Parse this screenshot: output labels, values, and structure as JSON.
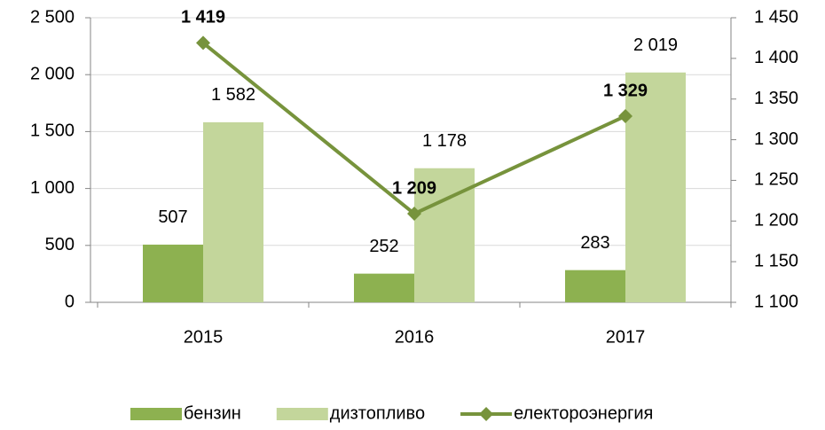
{
  "chart_data": {
    "type": "bar",
    "categories": [
      "2015",
      "2016",
      "2017"
    ],
    "series": [
      {
        "name": "бензин",
        "color": "#8db150",
        "values": [
          507,
          252,
          283
        ],
        "value_labels": [
          "507",
          "252",
          "283"
        ]
      },
      {
        "name": "дизтопливо",
        "color": "#c3d69b",
        "values": [
          1582,
          1178,
          2019
        ],
        "value_labels": [
          "1 582",
          "1 178",
          "2 019"
        ]
      },
      {
        "name": "електороэнергия",
        "type": "line",
        "axis": "y2",
        "color": "#77933c",
        "values": [
          1419,
          1209,
          1329
        ],
        "value_labels": [
          "1 419",
          "1 209",
          "1 329"
        ]
      }
    ],
    "ylim": [
      0,
      2500
    ],
    "yticks": [
      0,
      500,
      {
        "value": 1000,
        "label": "1 000"
      },
      {
        "value": 1500,
        "label": "1 500"
      },
      {
        "value": 2000,
        "label": "2 000"
      },
      {
        "value": 2500,
        "label": "2 500"
      }
    ],
    "y2lim": [
      1100,
      1450
    ],
    "y2ticks": [
      {
        "value": 1100,
        "label": "1 100"
      },
      {
        "value": 1150,
        "label": "1 150"
      },
      {
        "value": 1200,
        "label": "1 200"
      },
      {
        "value": 1250,
        "label": "1 250"
      },
      {
        "value": 1300,
        "label": "1 300"
      },
      {
        "value": 1350,
        "label": "1 350"
      },
      {
        "value": 1400,
        "label": "1 400"
      },
      {
        "value": 1450,
        "label": "1 450"
      }
    ],
    "grid": true,
    "legend": "bottom"
  }
}
